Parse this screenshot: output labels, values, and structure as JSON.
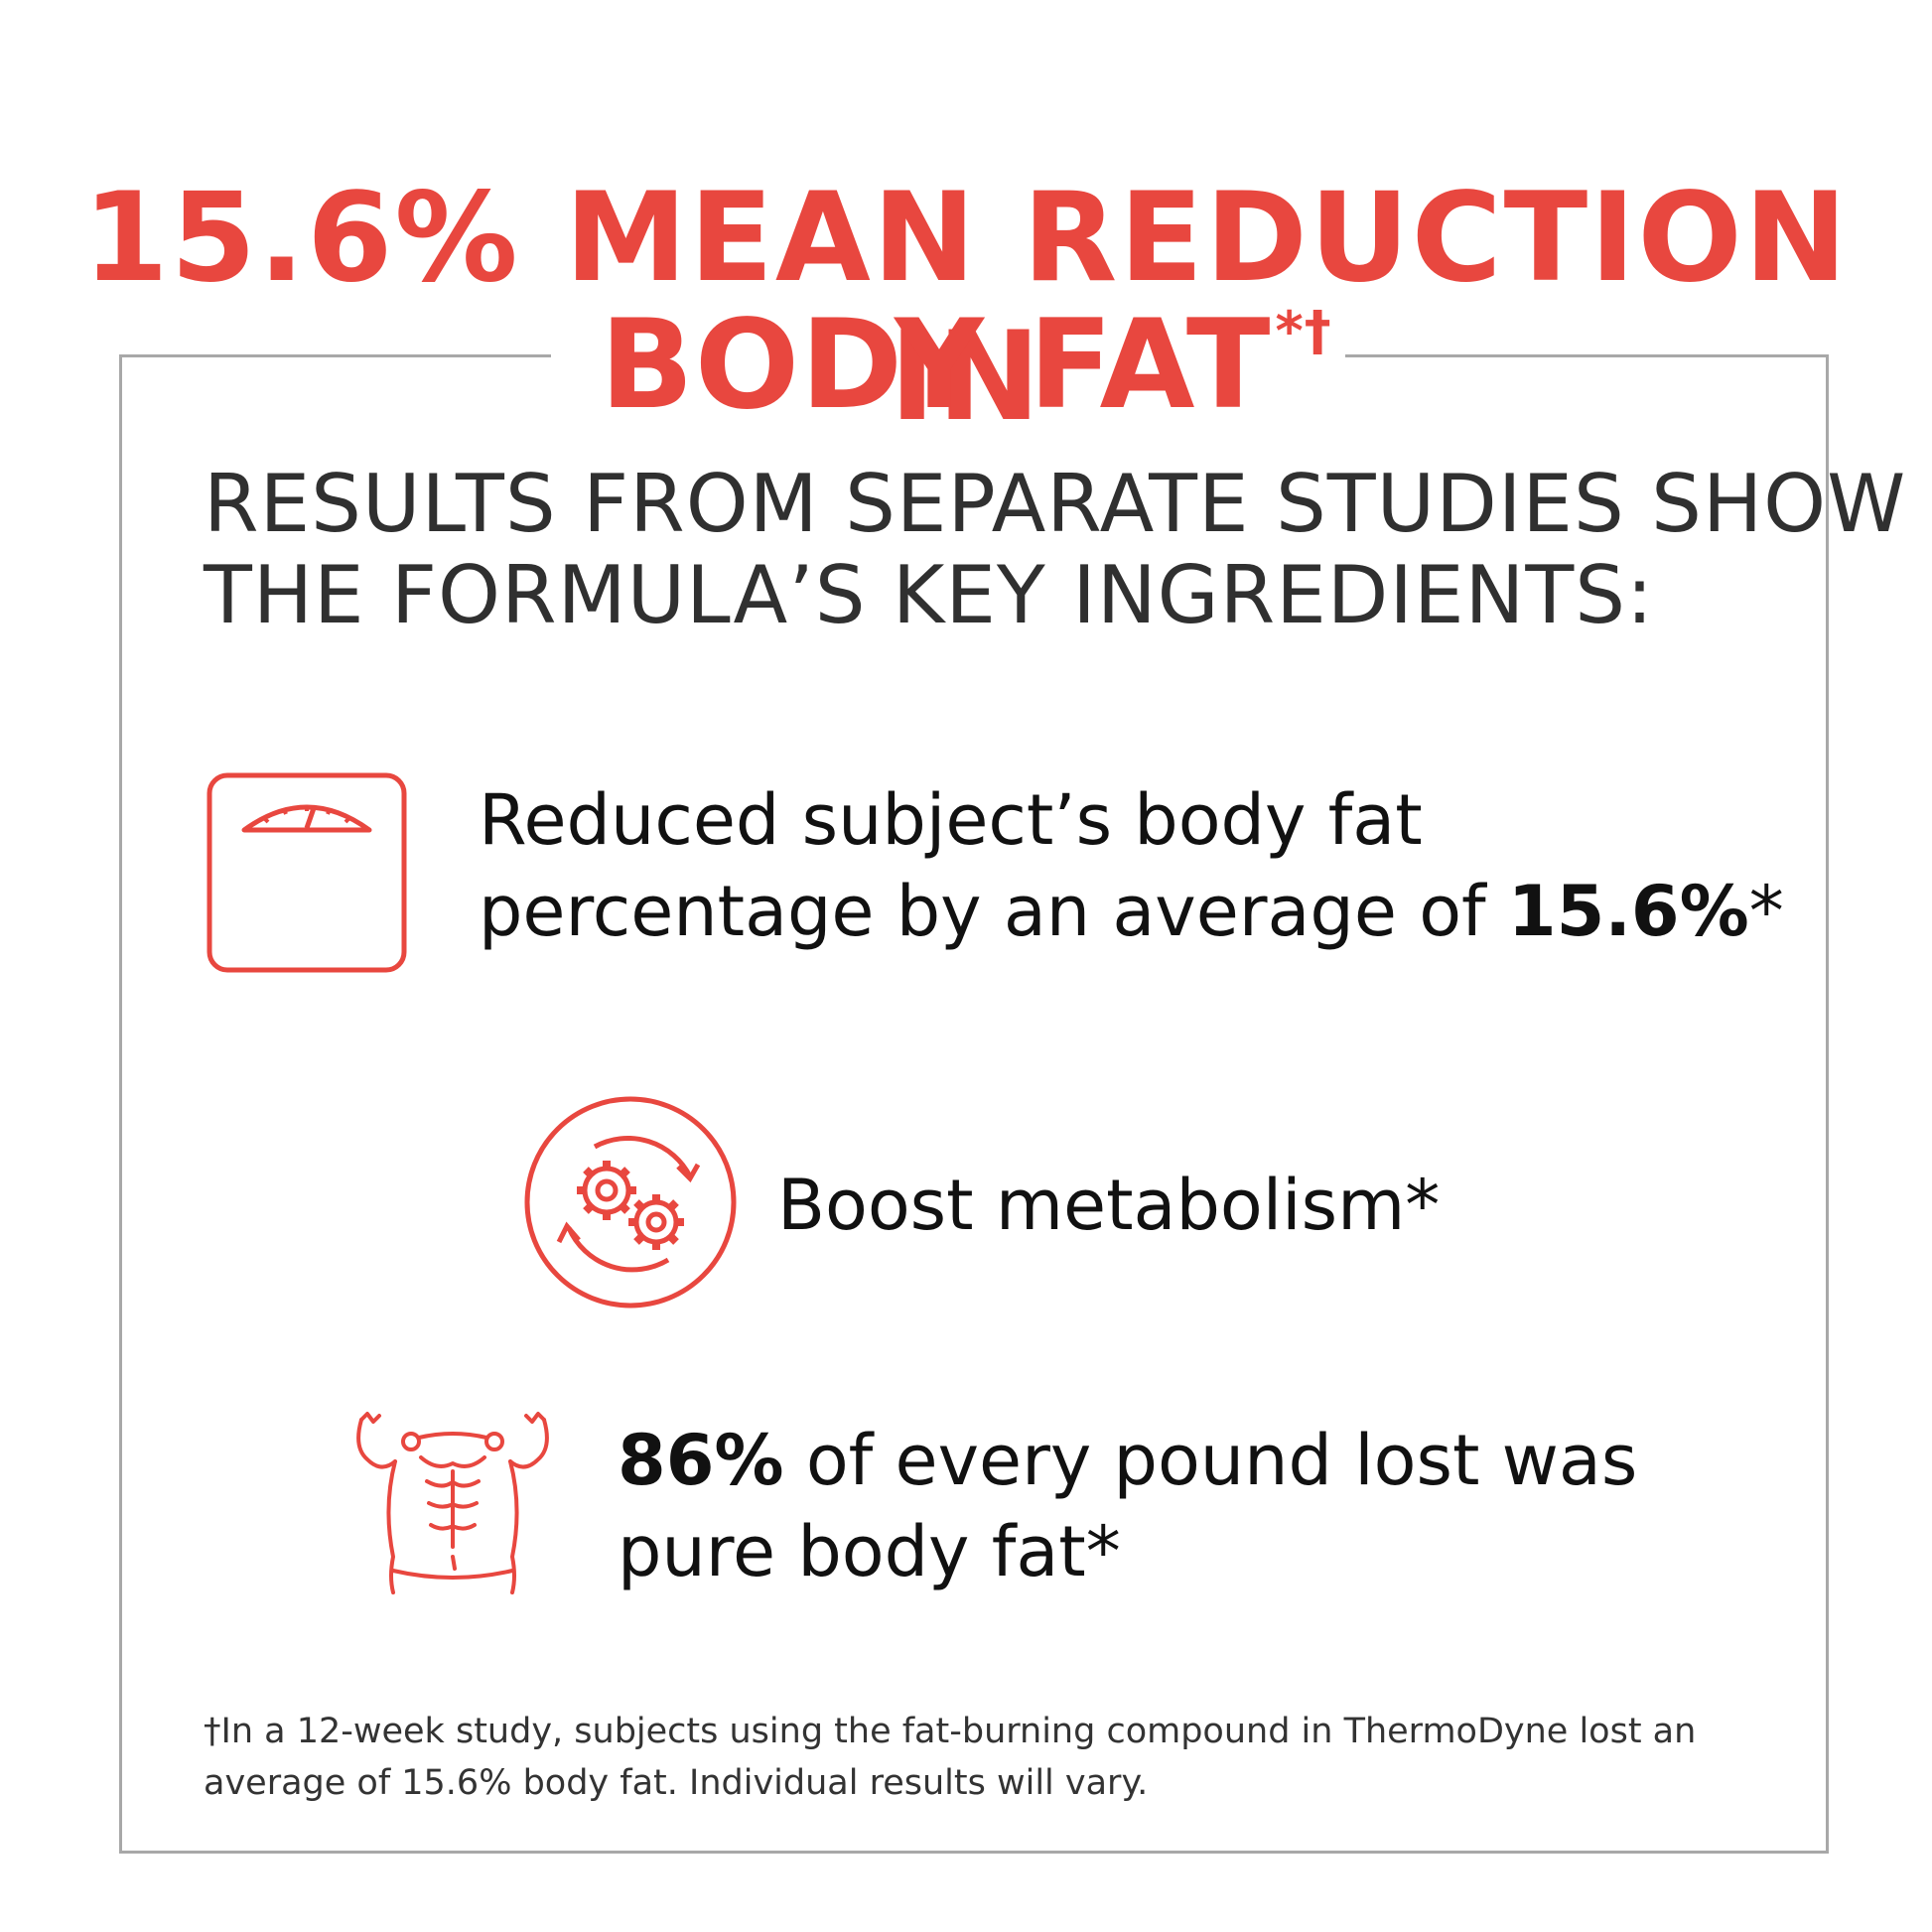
{
  "headline": {
    "line1": "15.6% MEAN REDUCTION IN",
    "line2": "BODY FAT",
    "marks": "*†"
  },
  "subhead": {
    "line1": "RESULTS FROM SEPARATE STUDIES SHOW",
    "line2": "THE FORMULA’S KEY INGREDIENTS:"
  },
  "items": [
    {
      "icon": "scale-icon",
      "line1": "Reduced subject’s body fat",
      "line2_pre": "percentage by an average of ",
      "line2_bold": "15.6%",
      "line2_post": "*"
    },
    {
      "icon": "metabolism-gears-icon",
      "text": "Boost metabolism*"
    },
    {
      "icon": "torso-muscle-icon",
      "line1_bold": "86%",
      "line1_rest": " of every pound lost was",
      "line2": "pure body fat*"
    }
  ],
  "footnote": {
    "line1": "†In a 12-week study, subjects using the fat-burning compound in ThermoDyne lost an",
    "line2": "average of 15.6% body fat. Individual results will vary."
  },
  "colors": {
    "accent": "#e8473f",
    "text": "#111111",
    "subhead": "#303030",
    "frame": "#a8a8a8"
  }
}
